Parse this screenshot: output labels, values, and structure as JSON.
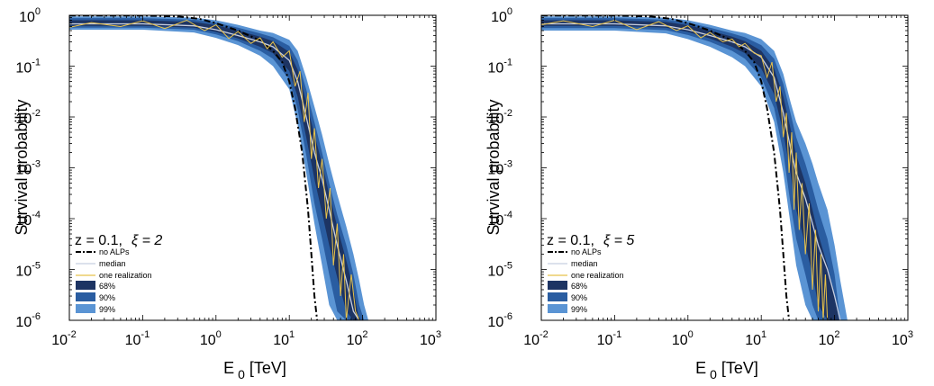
{
  "colors": {
    "band68": "#1d3463",
    "band90": "#2a5da1",
    "band99": "#5a94d4",
    "median": "#c8cfe0",
    "realization": "#e8c24a",
    "no_alps": "#000000"
  },
  "chart_data": [
    {
      "type": "line",
      "title": "",
      "annotation": {
        "z_text": "z = 0.1,",
        "xi_text": "ξ = 2"
      },
      "xlabel": "E",
      "xlabel_sub": "0",
      "xlabel_unit": "[TeV]",
      "ylabel": "Survival probability",
      "xscale": "log",
      "yscale": "log",
      "xlim": [
        0.01,
        1000
      ],
      "ylim": [
        1e-06,
        1
      ],
      "x_ticks": [
        {
          "base": "10",
          "exp": "-2",
          "value": 0.01
        },
        {
          "base": "10",
          "exp": "-1",
          "value": 0.1
        },
        {
          "base": "10",
          "exp": "0",
          "value": 1
        },
        {
          "base": "10",
          "exp": "1",
          "value": 10
        },
        {
          "base": "10",
          "exp": "2",
          "value": 100
        },
        {
          "base": "10",
          "exp": "3",
          "value": 1000
        }
      ],
      "y_ticks": [
        {
          "base": "10",
          "exp": "-6",
          "value": 1e-06
        },
        {
          "base": "10",
          "exp": "-5",
          "value": 1e-05
        },
        {
          "base": "10",
          "exp": "-4",
          "value": 0.0001
        },
        {
          "base": "10",
          "exp": "-3",
          "value": 0.001
        },
        {
          "base": "10",
          "exp": "-2",
          "value": 0.01
        },
        {
          "base": "10",
          "exp": "-1",
          "value": 0.1
        },
        {
          "base": "10",
          "exp": "0",
          "value": 1
        }
      ],
      "legend": {
        "placement": "lower-left",
        "entries": [
          "no ALPs",
          "median",
          "one realization",
          "68%",
          "90%",
          "99%"
        ]
      },
      "series": [
        {
          "name": "no ALPs",
          "style": "dashdot",
          "x": [
            0.01,
            0.1,
            0.3,
            0.6,
            1,
            2,
            4,
            6,
            8,
            10,
            12,
            15,
            18,
            20,
            22,
            24
          ],
          "y": [
            0.99,
            0.99,
            0.95,
            0.85,
            0.7,
            0.5,
            0.32,
            0.2,
            0.12,
            0.05,
            0.015,
            0.002,
            0.00015,
            2e-05,
            3e-06,
            1e-06
          ]
        },
        {
          "name": "median",
          "x": [
            0.01,
            0.1,
            0.5,
            1,
            2,
            4,
            6,
            10,
            13,
            17,
            22,
            28,
            35,
            45,
            60,
            75,
            90
          ],
          "y": [
            0.68,
            0.68,
            0.62,
            0.52,
            0.4,
            0.3,
            0.24,
            0.13,
            0.05,
            0.01,
            0.002,
            0.0006,
            0.00015,
            3e-05,
            6e-06,
            1.5e-06,
            1e-06
          ]
        },
        {
          "name": "one realization",
          "x": [
            0.01,
            0.02,
            0.05,
            0.1,
            0.2,
            0.4,
            0.7,
            1,
            1.5,
            2,
            3,
            4,
            5,
            6,
            8,
            10,
            12,
            14,
            16,
            18,
            20,
            22,
            25,
            28,
            32,
            36,
            40,
            45,
            50,
            55,
            60,
            70,
            80,
            90
          ],
          "y": [
            0.58,
            0.72,
            0.6,
            0.78,
            0.55,
            0.8,
            0.5,
            0.65,
            0.35,
            0.48,
            0.28,
            0.36,
            0.22,
            0.3,
            0.15,
            0.2,
            0.04,
            0.08,
            0.008,
            0.03,
            0.0015,
            0.006,
            0.0004,
            0.0015,
            0.0001,
            0.0004,
            1.2e-05,
            8e-05,
            3e-06,
            2e-05,
            1e-06,
            8e-06,
            1.5e-06,
            1e-06
          ]
        }
      ],
      "bands": [
        {
          "name": "99%",
          "x": [
            0.01,
            0.1,
            0.5,
            1,
            2,
            4,
            6,
            10,
            13,
            17,
            22,
            28,
            35,
            45,
            60,
            75,
            90,
            105,
            120
          ],
          "upper": [
            0.95,
            0.95,
            0.9,
            0.8,
            0.65,
            0.5,
            0.45,
            0.33,
            0.2,
            0.06,
            0.016,
            0.0045,
            0.0012,
            0.0003,
            7e-05,
            2e-05,
            6e-06,
            2e-06,
            1e-06
          ],
          "lower": [
            0.52,
            0.52,
            0.46,
            0.36,
            0.26,
            0.16,
            0.1,
            0.035,
            0.007,
            0.0008,
            8e-05,
            1.2e-05,
            2e-06,
            1e-06,
            1e-06,
            1e-06,
            1e-06,
            1e-06,
            1e-06
          ]
        },
        {
          "name": "90%",
          "x": [
            0.01,
            0.1,
            0.5,
            1,
            2,
            4,
            6,
            10,
            13,
            17,
            22,
            28,
            35,
            45,
            60,
            75,
            90,
            105
          ],
          "upper": [
            0.88,
            0.88,
            0.82,
            0.72,
            0.57,
            0.44,
            0.37,
            0.25,
            0.13,
            0.035,
            0.008,
            0.002,
            0.0005,
            0.00012,
            3e-05,
            8e-06,
            2e-06,
            1e-06
          ],
          "lower": [
            0.57,
            0.57,
            0.52,
            0.42,
            0.31,
            0.2,
            0.14,
            0.055,
            0.014,
            0.0018,
            0.0002,
            4e-05,
            8e-06,
            1.5e-06,
            1e-06,
            1e-06,
            1e-06,
            1e-06
          ]
        },
        {
          "name": "68%",
          "x": [
            0.01,
            0.1,
            0.5,
            1,
            2,
            4,
            6,
            10,
            13,
            17,
            22,
            28,
            35,
            45,
            60,
            75,
            90
          ],
          "upper": [
            0.8,
            0.8,
            0.74,
            0.64,
            0.5,
            0.38,
            0.31,
            0.19,
            0.085,
            0.02,
            0.0045,
            0.0012,
            0.0003,
            7e-05,
            1.5e-05,
            4e-06,
            1e-06
          ],
          "lower": [
            0.62,
            0.62,
            0.57,
            0.47,
            0.35,
            0.24,
            0.18,
            0.08,
            0.025,
            0.004,
            0.0006,
            0.00013,
            3e-05,
            7e-06,
            1.5e-06,
            1e-06,
            1e-06
          ]
        }
      ]
    },
    {
      "type": "line",
      "title": "",
      "annotation": {
        "z_text": "z = 0.1,",
        "xi_text": "ξ = 5"
      },
      "xlabel": "E",
      "xlabel_sub": "0",
      "xlabel_unit": "[TeV]",
      "ylabel": "Survival probability",
      "xscale": "log",
      "yscale": "log",
      "xlim": [
        0.01,
        1000
      ],
      "ylim": [
        1e-06,
        1
      ],
      "x_ticks": [
        {
          "base": "10",
          "exp": "-2",
          "value": 0.01
        },
        {
          "base": "10",
          "exp": "-1",
          "value": 0.1
        },
        {
          "base": "10",
          "exp": "0",
          "value": 1
        },
        {
          "base": "10",
          "exp": "1",
          "value": 10
        },
        {
          "base": "10",
          "exp": "2",
          "value": 100
        },
        {
          "base": "10",
          "exp": "3",
          "value": 1000
        }
      ],
      "y_ticks": [
        {
          "base": "10",
          "exp": "-6",
          "value": 1e-06
        },
        {
          "base": "10",
          "exp": "-5",
          "value": 1e-05
        },
        {
          "base": "10",
          "exp": "-4",
          "value": 0.0001
        },
        {
          "base": "10",
          "exp": "-3",
          "value": 0.001
        },
        {
          "base": "10",
          "exp": "-2",
          "value": 0.01
        },
        {
          "base": "10",
          "exp": "-1",
          "value": 0.1
        },
        {
          "base": "10",
          "exp": "0",
          "value": 1
        }
      ],
      "legend": {
        "placement": "lower-left",
        "entries": [
          "no ALPs",
          "median",
          "one realization",
          "68%",
          "90%",
          "99%"
        ]
      },
      "series": [
        {
          "name": "no ALPs",
          "style": "dashdot",
          "x": [
            0.01,
            0.1,
            0.3,
            0.6,
            1,
            2,
            4,
            6,
            8,
            10,
            12,
            15,
            18,
            20,
            22,
            24
          ],
          "y": [
            0.99,
            0.99,
            0.95,
            0.85,
            0.7,
            0.5,
            0.32,
            0.2,
            0.12,
            0.05,
            0.015,
            0.002,
            0.00015,
            2e-05,
            3e-06,
            1e-06
          ]
        },
        {
          "name": "median",
          "x": [
            0.01,
            0.1,
            0.5,
            1,
            2,
            4,
            6,
            10,
            15,
            20,
            25,
            30,
            40,
            50,
            60,
            80,
            100,
            120
          ],
          "y": [
            0.68,
            0.68,
            0.62,
            0.52,
            0.4,
            0.3,
            0.24,
            0.15,
            0.06,
            0.012,
            0.0025,
            0.0008,
            0.00025,
            8e-05,
            3e-05,
            1e-05,
            3e-06,
            1e-06
          ]
        },
        {
          "name": "one realization",
          "x": [
            0.01,
            0.02,
            0.05,
            0.1,
            0.2,
            0.4,
            0.7,
            1,
            1.5,
            2,
            3,
            4,
            5,
            6,
            8,
            10,
            12,
            14,
            16,
            18,
            20,
            22,
            24,
            26,
            28,
            30,
            33,
            36,
            40,
            45,
            50,
            55,
            60,
            65,
            70,
            75,
            80
          ],
          "y": [
            0.65,
            0.78,
            0.6,
            0.8,
            0.52,
            0.75,
            0.5,
            0.62,
            0.36,
            0.46,
            0.3,
            0.34,
            0.24,
            0.28,
            0.18,
            0.16,
            0.06,
            0.12,
            0.02,
            0.04,
            0.004,
            0.012,
            0.0008,
            0.005,
            0.00015,
            0.002,
            6e-05,
            0.0005,
            2e-05,
            0.0002,
            4e-06,
            6e-05,
            1.5e-06,
            2e-05,
            1e-06,
            8e-06,
            1e-06
          ]
        }
      ],
      "bands": [
        {
          "name": "99%",
          "x": [
            0.01,
            0.1,
            0.5,
            1,
            2,
            4,
            6,
            10,
            15,
            20,
            25,
            30,
            40,
            50,
            60,
            80,
            100,
            120,
            150
          ],
          "upper": [
            0.95,
            0.95,
            0.9,
            0.8,
            0.65,
            0.5,
            0.45,
            0.34,
            0.2,
            0.07,
            0.02,
            0.008,
            0.003,
            0.0012,
            0.0005,
            0.00015,
            3e-05,
            6e-06,
            1e-06
          ],
          "lower": [
            0.5,
            0.5,
            0.44,
            0.34,
            0.24,
            0.15,
            0.1,
            0.04,
            0.008,
            0.0008,
            8e-05,
            1.2e-05,
            2e-06,
            1e-06,
            1e-06,
            1e-06,
            1e-06,
            1e-06,
            1e-06
          ]
        },
        {
          "name": "90%",
          "x": [
            0.01,
            0.1,
            0.5,
            1,
            2,
            4,
            6,
            10,
            15,
            20,
            25,
            30,
            40,
            50,
            60,
            80,
            100,
            120
          ],
          "upper": [
            0.88,
            0.88,
            0.82,
            0.72,
            0.57,
            0.44,
            0.37,
            0.26,
            0.14,
            0.045,
            0.012,
            0.004,
            0.0012,
            0.0004,
            0.00015,
            4e-05,
            8e-06,
            1e-06
          ],
          "lower": [
            0.56,
            0.56,
            0.51,
            0.41,
            0.3,
            0.2,
            0.14,
            0.06,
            0.015,
            0.002,
            0.0002,
            4e-05,
            8e-06,
            2e-06,
            1e-06,
            1e-06,
            1e-06,
            1e-06
          ]
        },
        {
          "name": "68%",
          "x": [
            0.01,
            0.1,
            0.5,
            1,
            2,
            4,
            6,
            10,
            15,
            20,
            25,
            30,
            40,
            50,
            60,
            80,
            100,
            115
          ],
          "upper": [
            0.8,
            0.8,
            0.74,
            0.64,
            0.5,
            0.38,
            0.31,
            0.2,
            0.09,
            0.025,
            0.006,
            0.0018,
            0.0005,
            0.00015,
            5e-05,
            1.2e-05,
            3e-06,
            1e-06
          ],
          "lower": [
            0.62,
            0.62,
            0.57,
            0.47,
            0.35,
            0.24,
            0.18,
            0.09,
            0.028,
            0.005,
            0.0008,
            0.00015,
            3e-05,
            8e-06,
            2e-06,
            1e-06,
            1e-06,
            1e-06
          ]
        }
      ]
    }
  ]
}
